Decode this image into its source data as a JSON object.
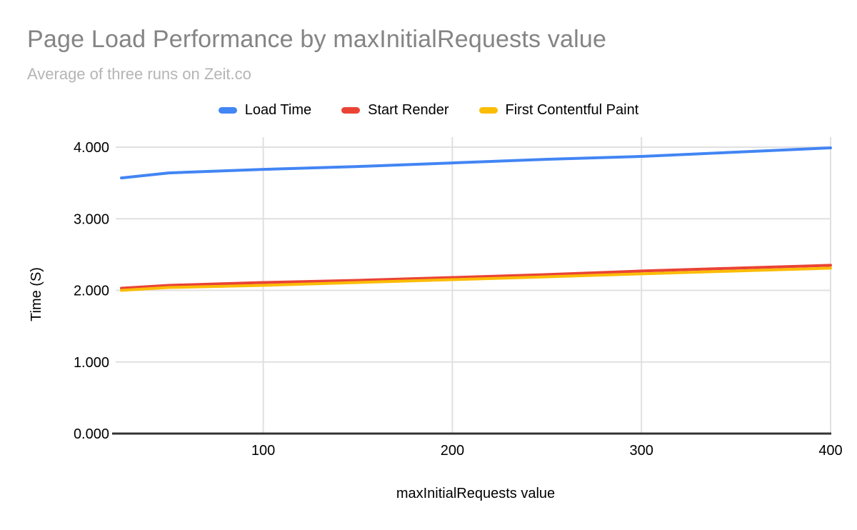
{
  "chart_data": {
    "type": "line",
    "title": "Page Load Performance by maxInitialRequests value",
    "subtitle": "Average of three runs on Zeit.co",
    "xlabel": "maxInitialRequests value",
    "ylabel": "Time (S)",
    "legend_position": "top",
    "grid": true,
    "xlim": [
      25,
      400
    ],
    "ylim": [
      0,
      4
    ],
    "x_ticks": [
      {
        "value": 100,
        "label": "100"
      },
      {
        "value": 200,
        "label": "200"
      },
      {
        "value": 300,
        "label": "300"
      },
      {
        "value": 400,
        "label": "400"
      }
    ],
    "y_ticks": [
      {
        "value": 0,
        "label": "0.000"
      },
      {
        "value": 1,
        "label": "1.000"
      },
      {
        "value": 2,
        "label": "2.000"
      },
      {
        "value": 3,
        "label": "3.000"
      },
      {
        "value": 4,
        "label": "4.000"
      }
    ],
    "x": [
      25,
      50,
      100,
      150,
      200,
      250,
      300,
      350,
      400
    ],
    "series": [
      {
        "name": "Load Time",
        "color": "#4285f4",
        "values": [
          3.57,
          3.64,
          3.69,
          3.73,
          3.78,
          3.83,
          3.87,
          3.93,
          3.99
        ]
      },
      {
        "name": "Start Render",
        "color": "#ea4335",
        "values": [
          2.03,
          2.07,
          2.11,
          2.14,
          2.18,
          2.22,
          2.27,
          2.31,
          2.35
        ]
      },
      {
        "name": "First Contentful Paint",
        "color": "#fbbc04",
        "values": [
          2.0,
          2.04,
          2.07,
          2.11,
          2.15,
          2.19,
          2.23,
          2.27,
          2.31
        ]
      }
    ]
  },
  "style": {
    "title_color": "#848484",
    "subtitle_color": "#b5b5b5",
    "legend_text_color": "#000000",
    "tick_text_color": "#000000",
    "gridline_color": "#e0e0e0",
    "axis_color": "#333333",
    "background": "#ffffff"
  }
}
